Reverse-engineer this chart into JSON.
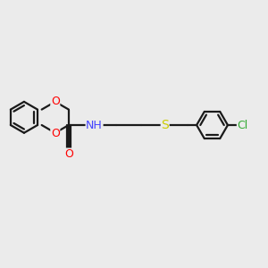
{
  "bg_color": "#ebebeb",
  "bond_color": "#1a1a1a",
  "bond_width": 1.6,
  "atom_colors": {
    "O": "#ff0000",
    "N": "#4444ff",
    "S": "#cccc00",
    "Cl": "#33aa33",
    "C": "#1a1a1a"
  },
  "font_size": 8.5,
  "figsize": [
    3.0,
    3.0
  ],
  "dpi": 100
}
